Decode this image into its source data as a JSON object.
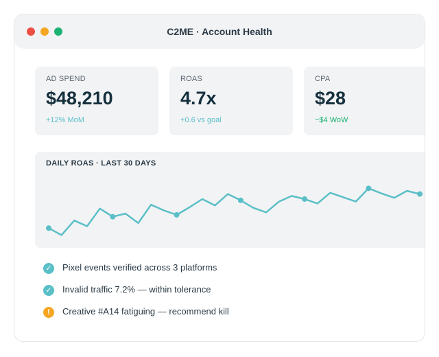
{
  "window": {
    "title": "C2ME · Account Health",
    "controls": [
      "close",
      "minimize",
      "zoom"
    ]
  },
  "metrics": [
    {
      "label": "AD SPEND",
      "value": "$48,210",
      "delta": "+12% MoM",
      "delta_color": "#5bbfc7"
    },
    {
      "label": "ROAS",
      "value": "4.7x",
      "delta": "+0.6 vs goal",
      "delta_color": "#5bbfc7"
    },
    {
      "label": "CPA",
      "value": "$28",
      "delta": "−$4 WoW",
      "delta_color": "#1bb373"
    }
  ],
  "chart": {
    "title": "DAILY ROAS · LAST 30 DAYS",
    "line_color": "#5bbfc7"
  },
  "chart_data": {
    "type": "line",
    "title": "DAILY ROAS · LAST 30 DAYS",
    "x": [
      1,
      2,
      3,
      4,
      5,
      6,
      7,
      8,
      9,
      10,
      11,
      12,
      13,
      14,
      15,
      16,
      17,
      18,
      19,
      20,
      21,
      22,
      23,
      24,
      25,
      26,
      27,
      28,
      29,
      30
    ],
    "series": [
      {
        "values": [
          0.16,
          0.05,
          0.28,
          0.19,
          0.47,
          0.34,
          0.39,
          0.24,
          0.53,
          0.44,
          0.37,
          0.49,
          0.62,
          0.52,
          0.7,
          0.6,
          0.48,
          0.41,
          0.58,
          0.67,
          0.62,
          0.55,
          0.72,
          0.65,
          0.58,
          0.79,
          0.71,
          0.64,
          0.75,
          0.7
        ]
      }
    ],
    "markers_at": [
      1,
      6,
      11,
      16,
      21,
      26,
      30
    ],
    "grid": false,
    "legend": "none"
  },
  "checklist": [
    {
      "icon": "check-icon",
      "status": "ok",
      "text": "Pixel events verified across 3 platforms"
    },
    {
      "icon": "check-icon",
      "status": "ok",
      "text": "Invalid traffic 7.2% — within tolerance"
    },
    {
      "icon": "warning-icon",
      "status": "warn",
      "text": "Creative #A14 fatiguing — recommend kill"
    }
  ],
  "colors": {
    "ok": "#5bbfc7",
    "warn": "#f5a623",
    "positive": "#1bb373"
  }
}
